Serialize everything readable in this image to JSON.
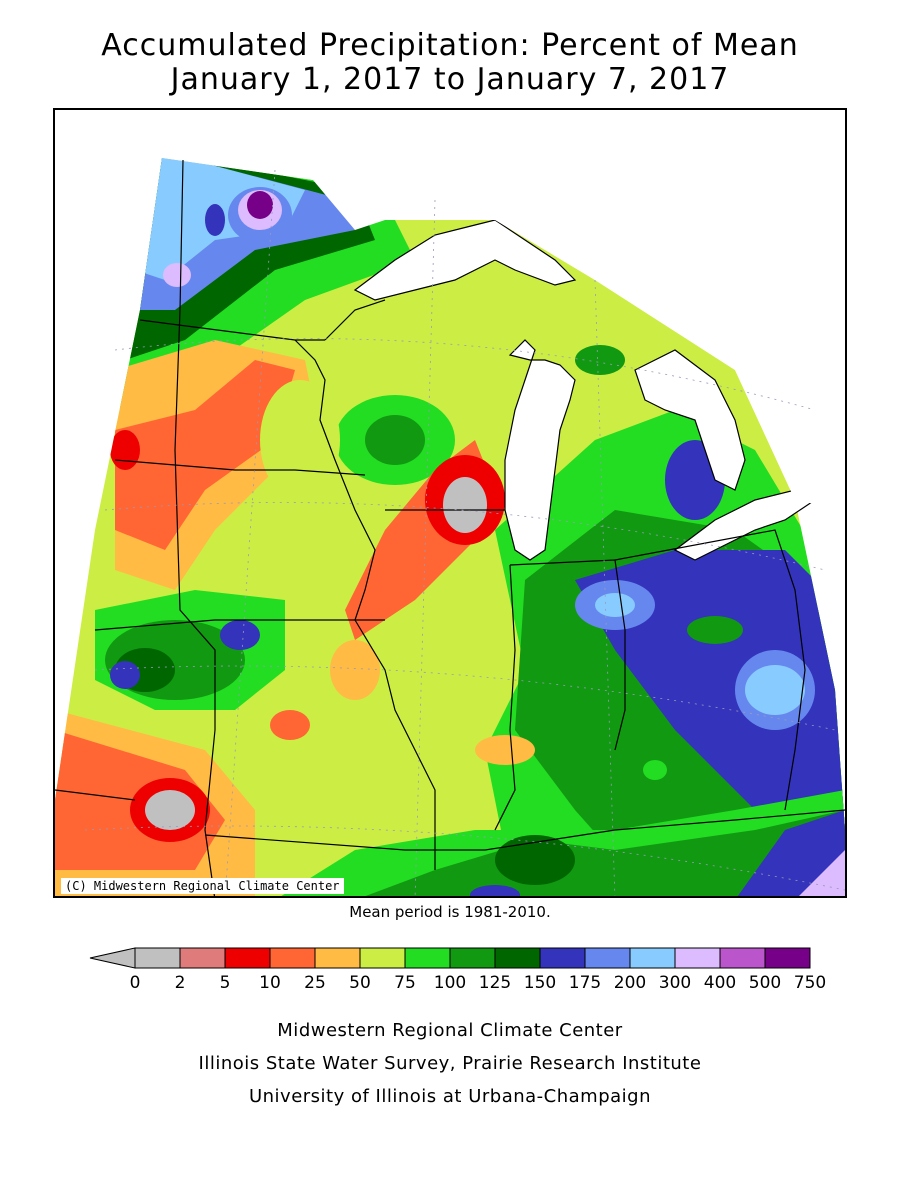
{
  "title_line1": "Accumulated Precipitation: Percent of Mean",
  "title_line2": "January 1, 2017 to January 7, 2017",
  "copyright": "(C) Midwestern Regional Climate Center",
  "mean_period": "Mean period is 1981-2010.",
  "legend": {
    "under_color": "#c0c0c0",
    "bins": [
      {
        "color": "#c0c0c0"
      },
      {
        "color": "#e07b7b"
      },
      {
        "color": "#ee0000"
      },
      {
        "color": "#ff6633"
      },
      {
        "color": "#ffbb44"
      },
      {
        "color": "#ccee44"
      },
      {
        "color": "#22dd22"
      },
      {
        "color": "#119911"
      },
      {
        "color": "#006600"
      },
      {
        "color": "#3333bb"
      },
      {
        "color": "#6688ee"
      },
      {
        "color": "#88ccff"
      },
      {
        "color": "#ddbbff"
      },
      {
        "color": "#bb55cc"
      },
      {
        "color": "#770088"
      }
    ],
    "ticks": [
      "0",
      "2",
      "5",
      "10",
      "25",
      "50",
      "75",
      "100",
      "125",
      "150",
      "175",
      "200",
      "300",
      "400",
      "500",
      "750"
    ]
  },
  "footer": {
    "line1": "Midwestern Regional Climate Center",
    "line2": "Illinois State Water Survey, Prairie Research Institute",
    "line3": "University of Illinois at Urbana-Champaign"
  }
}
